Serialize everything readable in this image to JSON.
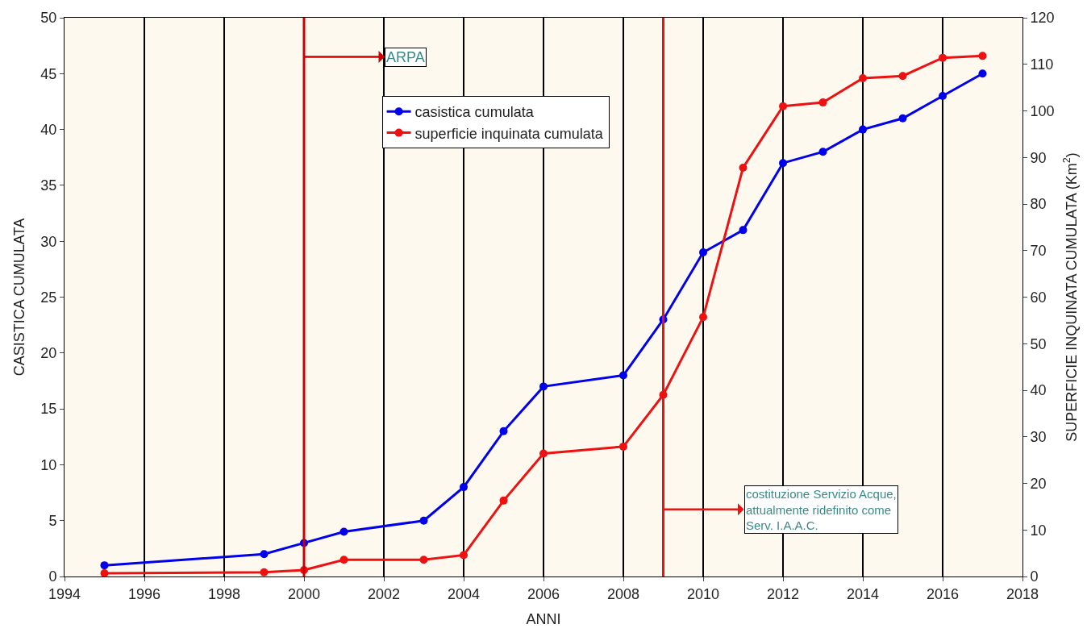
{
  "chart_data": {
    "type": "line",
    "xlabel": "ANNI",
    "ylabel": "CASISTICA CUMULATA",
    "y2label": "SUPERFICIE INQUINATA CUMULATA (Km$^{2}$)",
    "x": [
      1995,
      1999,
      2000,
      2001,
      2003,
      2004,
      2005,
      2006,
      2008,
      2009,
      2010,
      2011,
      2012,
      2013,
      2014,
      2015,
      2016,
      2017
    ],
    "series": [
      {
        "name": "casistica cumulata",
        "color": "#0000ee",
        "values": [
          1,
          2,
          3,
          4,
          5,
          8,
          13,
          17,
          18,
          23,
          29,
          31,
          37,
          38,
          40,
          41,
          43,
          45
        ]
      },
      {
        "name": "superficie inquinata cumulata",
        "color": "#ee1111",
        "axis": "y2",
        "values": [
          0.7,
          0.9,
          1.4,
          3.6,
          3.6,
          4.6,
          16.3,
          26.4,
          27.9,
          39,
          55.7,
          87.8,
          101,
          101.8,
          107,
          107.5,
          111.4,
          111.8
        ]
      }
    ],
    "xlim": [
      1994,
      2018
    ],
    "xticks": [
      1994,
      1996,
      1998,
      2000,
      2002,
      2004,
      2006,
      2008,
      2010,
      2012,
      2014,
      2016,
      2018
    ],
    "ylim": [
      0,
      50
    ],
    "yticks": [
      0,
      5,
      10,
      15,
      20,
      25,
      30,
      35,
      40,
      45,
      50
    ],
    "y2lim": [
      0,
      120
    ],
    "y2ticks": [
      0,
      10,
      20,
      30,
      40,
      50,
      60,
      70,
      80,
      90,
      100,
      110,
      120
    ],
    "ref_lines": [
      {
        "axis": "x",
        "value": 2000,
        "label": "ARPA",
        "color": "#cc0000"
      },
      {
        "axis": "x",
        "value": 2009,
        "label": "costituzione Servizio Acque,\nattualmente ridefinito come\nServ. I.A.A.C.",
        "color": "#ee1111"
      }
    ],
    "grid": "x",
    "legend": "top",
    "marker": "circle",
    "line_style": "solid"
  }
}
